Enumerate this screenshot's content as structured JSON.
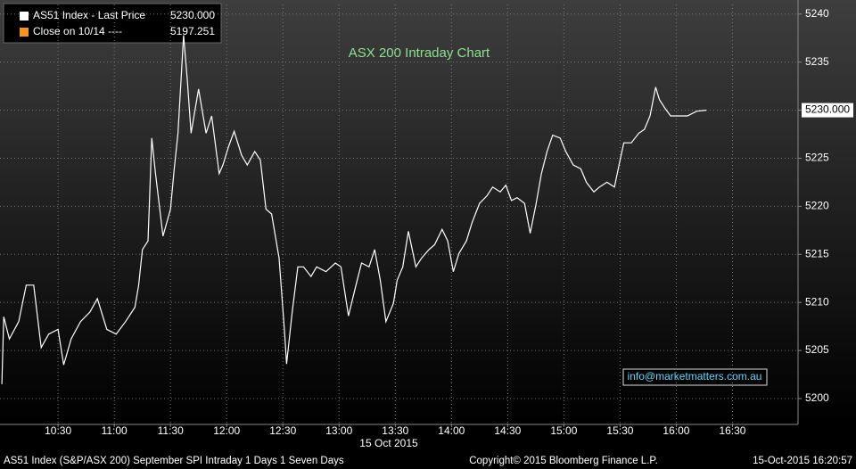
{
  "chart_data": {
    "type": "line",
    "title": "ASX 200 Intraday Chart",
    "x_label": "15 Oct 2015",
    "legend": [
      {
        "text": "AS51 Index - Last Price",
        "value_text": "5230.000",
        "color": "#ffffff"
      },
      {
        "text": "Close on 10/14 ----",
        "value_text": "5197.251",
        "color": "#f7941d"
      }
    ],
    "last_price_label": "5230.000",
    "annotation": "info@marketmatters.com.au",
    "footer_left": "AS51 Index (S&P/ASX 200) September SPI Intraday 1 Days 1 Seven Days",
    "footer_center": "Copyright© 2015 Bloomberg Finance L.P.",
    "footer_right": "15-Oct-2015 16:20:57",
    "grid": true,
    "xlim": [
      599,
      1025
    ],
    "ylim": [
      5197.4,
      5241
    ],
    "xticks": [
      {
        "value": 630,
        "label": "10:30"
      },
      {
        "value": 660,
        "label": "11:00"
      },
      {
        "value": 690,
        "label": "11:30"
      },
      {
        "value": 720,
        "label": "12:00"
      },
      {
        "value": 750,
        "label": "12:30"
      },
      {
        "value": 780,
        "label": "13:00"
      },
      {
        "value": 810,
        "label": "13:30"
      },
      {
        "value": 840,
        "label": "14:00"
      },
      {
        "value": 870,
        "label": "14:30"
      },
      {
        "value": 900,
        "label": "15:00"
      },
      {
        "value": 930,
        "label": "15:30"
      },
      {
        "value": 960,
        "label": "16:00"
      },
      {
        "value": 990,
        "label": "16:30"
      }
    ],
    "yticks": [
      5200,
      5205,
      5210,
      5215,
      5220,
      5225,
      5230,
      5235,
      5240
    ],
    "x": [
      600,
      601,
      604,
      609,
      613,
      617,
      621,
      625,
      630,
      633,
      637,
      642,
      647,
      651,
      656,
      661,
      666,
      671,
      673,
      675,
      678,
      680,
      682,
      686,
      690,
      692,
      694,
      697,
      699,
      701,
      705,
      709,
      712,
      716,
      718,
      721,
      724,
      728,
      731,
      735,
      738,
      741,
      744,
      748,
      751,
      752,
      755,
      758,
      761,
      765,
      768,
      773,
      778,
      781,
      785,
      789,
      792,
      796,
      799,
      802,
      805,
      809,
      811,
      814,
      817,
      821,
      824,
      828,
      831,
      835,
      838,
      841,
      844,
      848,
      851,
      855,
      859,
      862,
      866,
      869,
      872,
      875,
      879,
      882,
      885,
      888,
      891,
      894,
      898,
      901,
      905,
      909,
      912,
      916,
      919,
      923,
      927,
      930,
      932,
      936,
      940,
      943,
      946,
      949,
      951,
      954,
      957,
      961,
      966,
      971,
      976
    ],
    "series": [
      {
        "name": "AS51 Index - Last Price",
        "color": "#ffffff",
        "values": [
          5201.5,
          5208.5,
          5206.2,
          5208,
          5211.8,
          5211.8,
          5205.3,
          5206.7,
          5207.2,
          5203.5,
          5206.2,
          5208,
          5209,
          5210.4,
          5207.2,
          5206.7,
          5208,
          5209.5,
          5211.8,
          5215.5,
          5216.4,
          5227.1,
          5223.4,
          5216.9,
          5219.7,
          5223.9,
          5227.6,
          5237.8,
          5233.1,
          5227.6,
          5232.2,
          5227.6,
          5229.4,
          5223.4,
          5224.3,
          5226.2,
          5227.8,
          5225.3,
          5224.3,
          5225.7,
          5224.8,
          5219.7,
          5219.2,
          5214.6,
          5206.7,
          5203.6,
          5209,
          5213.7,
          5213.7,
          5212.7,
          5213.7,
          5213.2,
          5214.1,
          5213.7,
          5208.6,
          5211.8,
          5214.1,
          5213.7,
          5215.5,
          5212.3,
          5208,
          5209.9,
          5212.3,
          5213.7,
          5217.4,
          5213.7,
          5214.6,
          5215.5,
          5216,
          5217.6,
          5216.4,
          5213.2,
          5215.1,
          5216.4,
          5218.3,
          5220.3,
          5221.1,
          5222,
          5221.5,
          5222.2,
          5220.6,
          5220.9,
          5220.3,
          5217.2,
          5220.1,
          5223.4,
          5225.7,
          5227.4,
          5227.1,
          5225.7,
          5224.3,
          5223.9,
          5222.5,
          5221.5,
          5222,
          5222.5,
          5222,
          5224.8,
          5226.6,
          5226.6,
          5227.6,
          5228,
          5229.4,
          5232.4,
          5231.1,
          5230.2,
          5229.4,
          5229.4,
          5229.4,
          5229.9,
          5230
        ]
      }
    ],
    "close_value": 5197.251
  }
}
